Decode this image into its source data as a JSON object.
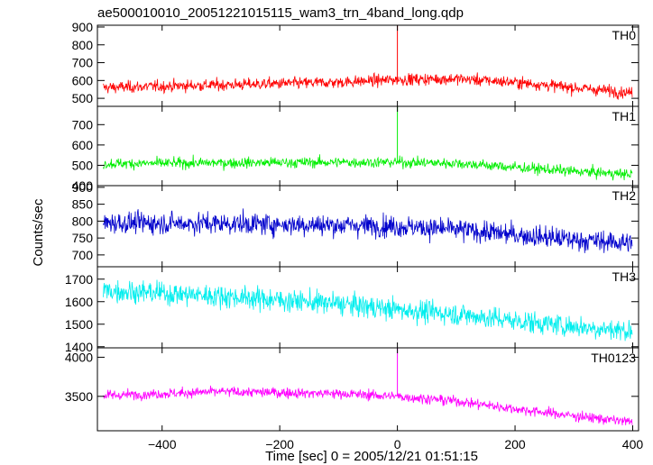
{
  "title": "ae500010010_20051221015115_wam3_trn_4band_long.qdp",
  "xlabel": "Time [sec] 0 = 2005/12/21 01:51:15",
  "ylabel": "Counts/sec",
  "chart_data": {
    "type": "line",
    "x": {
      "min": -510,
      "max": 410,
      "ticks": [
        -400,
        -200,
        0,
        200,
        400
      ]
    },
    "panels": [
      {
        "name": "TH0",
        "color": "#ff0000",
        "ylim": [
          455,
          910
        ],
        "ticks": [
          500,
          600,
          700,
          800,
          900
        ],
        "trend": [
          [
            -500,
            560
          ],
          [
            -300,
            575
          ],
          [
            -100,
            590
          ],
          [
            0,
            605
          ],
          [
            100,
            610
          ],
          [
            200,
            590
          ],
          [
            300,
            560
          ],
          [
            400,
            530
          ]
        ],
        "noise": 28,
        "spike": {
          "x": 0,
          "y": 910
        }
      },
      {
        "name": "TH1",
        "color": "#00ee00",
        "ylim": [
          400,
          790
        ],
        "ticks": [
          400,
          500,
          600,
          700
        ],
        "trend": [
          [
            -500,
            508
          ],
          [
            -300,
            512
          ],
          [
            -100,
            515
          ],
          [
            0,
            515
          ],
          [
            100,
            510
          ],
          [
            200,
            490
          ],
          [
            300,
            470
          ],
          [
            400,
            455
          ]
        ],
        "noise": 22,
        "spike": {
          "x": 0,
          "y": 790
        }
      },
      {
        "name": "TH2",
        "color": "#0000cc",
        "ylim": [
          665,
          905
        ],
        "ticks": [
          700,
          750,
          800,
          850,
          900
        ],
        "trend": [
          [
            -500,
            795
          ],
          [
            -300,
            793
          ],
          [
            -100,
            788
          ],
          [
            0,
            785
          ],
          [
            100,
            775
          ],
          [
            200,
            760
          ],
          [
            300,
            745
          ],
          [
            400,
            735
          ]
        ],
        "noise": 27
      },
      {
        "name": "TH3",
        "color": "#00eeee",
        "ylim": [
          1395,
          1755
        ],
        "ticks": [
          1400,
          1500,
          1600,
          1700
        ],
        "trend": [
          [
            -500,
            1650
          ],
          [
            -300,
            1625
          ],
          [
            -100,
            1590
          ],
          [
            0,
            1565
          ],
          [
            100,
            1545
          ],
          [
            200,
            1515
          ],
          [
            300,
            1490
          ],
          [
            400,
            1470
          ]
        ],
        "noise": 42
      },
      {
        "name": "TH0123",
        "color": "#ff00ff",
        "ylim": [
          3060,
          4120
        ],
        "ticks": [
          3500,
          4000
        ],
        "trend": [
          [
            -500,
            3510
          ],
          [
            -300,
            3560
          ],
          [
            -100,
            3535
          ],
          [
            0,
            3500
          ],
          [
            100,
            3440
          ],
          [
            200,
            3340
          ],
          [
            300,
            3250
          ],
          [
            400,
            3170
          ]
        ],
        "noise": 55,
        "spike": {
          "x": 0,
          "y": 4120
        }
      }
    ]
  }
}
